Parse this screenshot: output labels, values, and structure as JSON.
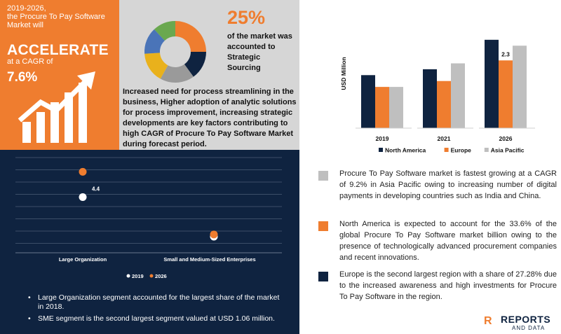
{
  "highlight": {
    "period_text": "2019-2026,\nthe Procure To Pay Software\nMarket will",
    "accelerate": "ACCELERATE",
    "cagr_text": "at a CAGR of",
    "cagr_value": "7.6%"
  },
  "share_box": {
    "percent": "25%",
    "description": "of the market was accounted to Strategic Sourcing",
    "donut_colors": [
      "#ef7d2f",
      "#0f2340",
      "#9a9a9a",
      "#e9b11c",
      "#4a74b8",
      "#6aa84f"
    ],
    "donut_shares": [
      0.25,
      0.15,
      0.18,
      0.16,
      0.14,
      0.12
    ],
    "paragraph": "Increased need for process streamlining in the business, Higher adoption of analytic solutions for process improvement, increasing strategic developments  are key factors contributing to high CAGR of Procure To Pay Software Market during forecast period."
  },
  "chart_data": [
    {
      "type": "bar",
      "categories": [
        "2019",
        "2021",
        "2026"
      ],
      "series": [
        {
          "name": "North America",
          "color": "#0f2340",
          "values": [
            1.8,
            2.0,
            3.0
          ]
        },
        {
          "name": "Europe",
          "color": "#ef7d2f",
          "values": [
            1.4,
            1.6,
            2.3
          ]
        },
        {
          "name": "Asia Pacific",
          "color": "#bfbfbf",
          "values": [
            1.4,
            2.2,
            2.8
          ]
        }
      ],
      "ylabel": "USD Million",
      "ylim": [
        0,
        3.4
      ],
      "data_label": "2.3",
      "legend_position": "bottom"
    },
    {
      "type": "scatter",
      "categories": [
        "Large Organization",
        "Small and Medium-Sized Enterprises"
      ],
      "series": [
        {
          "name": "2019",
          "color": "#ffffff",
          "values": [
            4.4,
            0.8
          ]
        },
        {
          "name": "2026",
          "color": "#ef7d2f",
          "values": [
            6.7,
            1.0
          ]
        }
      ],
      "data_label": "4.4",
      "ylim": [
        0,
        8
      ],
      "legend_position": "bottom"
    }
  ],
  "segment_notes": [
    "Large Organization segment accounted for the largest share of the market in 2018.",
    "SME segment is  the second largest segment valued at USD 1.06 million."
  ],
  "region_notes": [
    {
      "color": "#bfbfbf",
      "text": "Procure To Pay Software market is fastest growing at a CAGR of 9.2% in Asia Pacific owing to increasing number of digital payments in developing countries such as India and China."
    },
    {
      "color": "#ef7d2f",
      "text": "North America is expected to account for the 33.6% of the global Procure To Pay Software market billion owing to the presence of technologically advanced procurement companies and recent innovations."
    },
    {
      "color": "#0f2340",
      "text": "Europe is the second largest region with a share of 27.28% due to the increased awareness and high investments for Procure To Pay Software in the region."
    }
  ],
  "logo": {
    "mark": "R",
    "name": "REPORTS",
    "sub": "AND DATA"
  }
}
